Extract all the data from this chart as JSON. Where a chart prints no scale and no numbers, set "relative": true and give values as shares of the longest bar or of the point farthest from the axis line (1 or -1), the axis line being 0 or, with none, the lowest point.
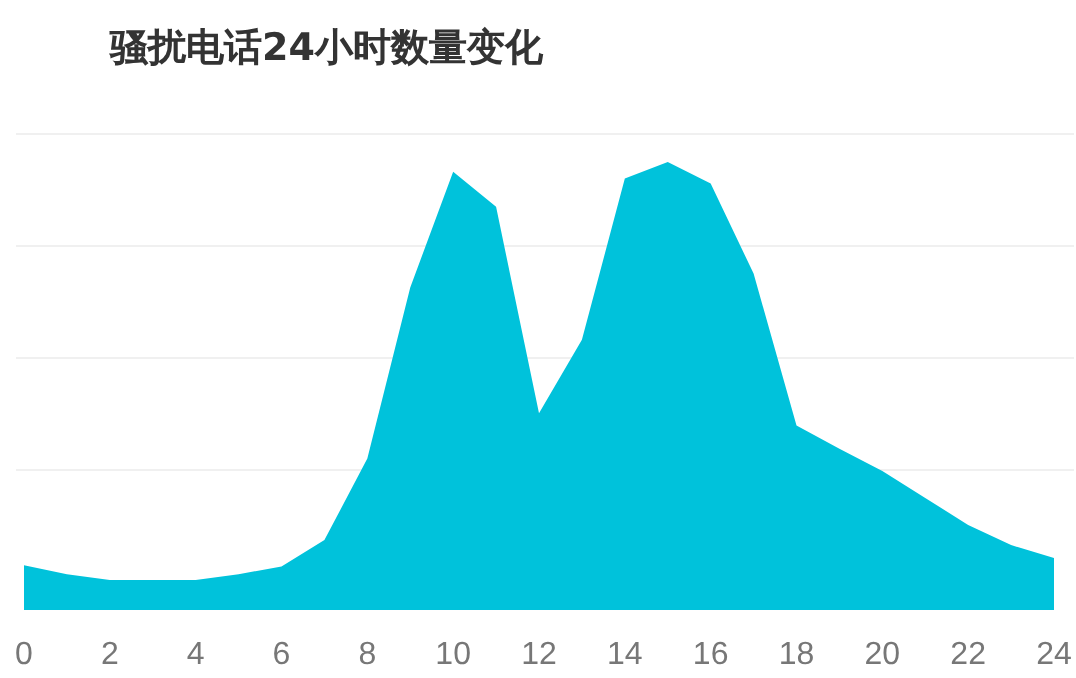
{
  "chart_data": {
    "type": "area",
    "title": "骚扰电话24小时数量变化",
    "relative": true,
    "grid": "y",
    "x": [
      0,
      1,
      2,
      3,
      4,
      5,
      6,
      7,
      8,
      9,
      10,
      11,
      12,
      13,
      14,
      15,
      16,
      17,
      18,
      19,
      20,
      21,
      22,
      23,
      24
    ],
    "xlim": [
      0,
      24
    ],
    "xticks": [
      0,
      2,
      4,
      6,
      8,
      10,
      12,
      14,
      16,
      18,
      20,
      22,
      24
    ],
    "series": [
      {
        "color": "#00c2db",
        "values": [
          0.1,
          0.08,
          0.067,
          0.067,
          0.067,
          0.08,
          0.097,
          0.156,
          0.338,
          0.72,
          0.978,
          0.9,
          0.439,
          0.603,
          0.963,
          1,
          0.952,
          0.751,
          0.412,
          0.36,
          0.31,
          0.25,
          0.19,
          0.145,
          0.116
        ]
      }
    ]
  }
}
